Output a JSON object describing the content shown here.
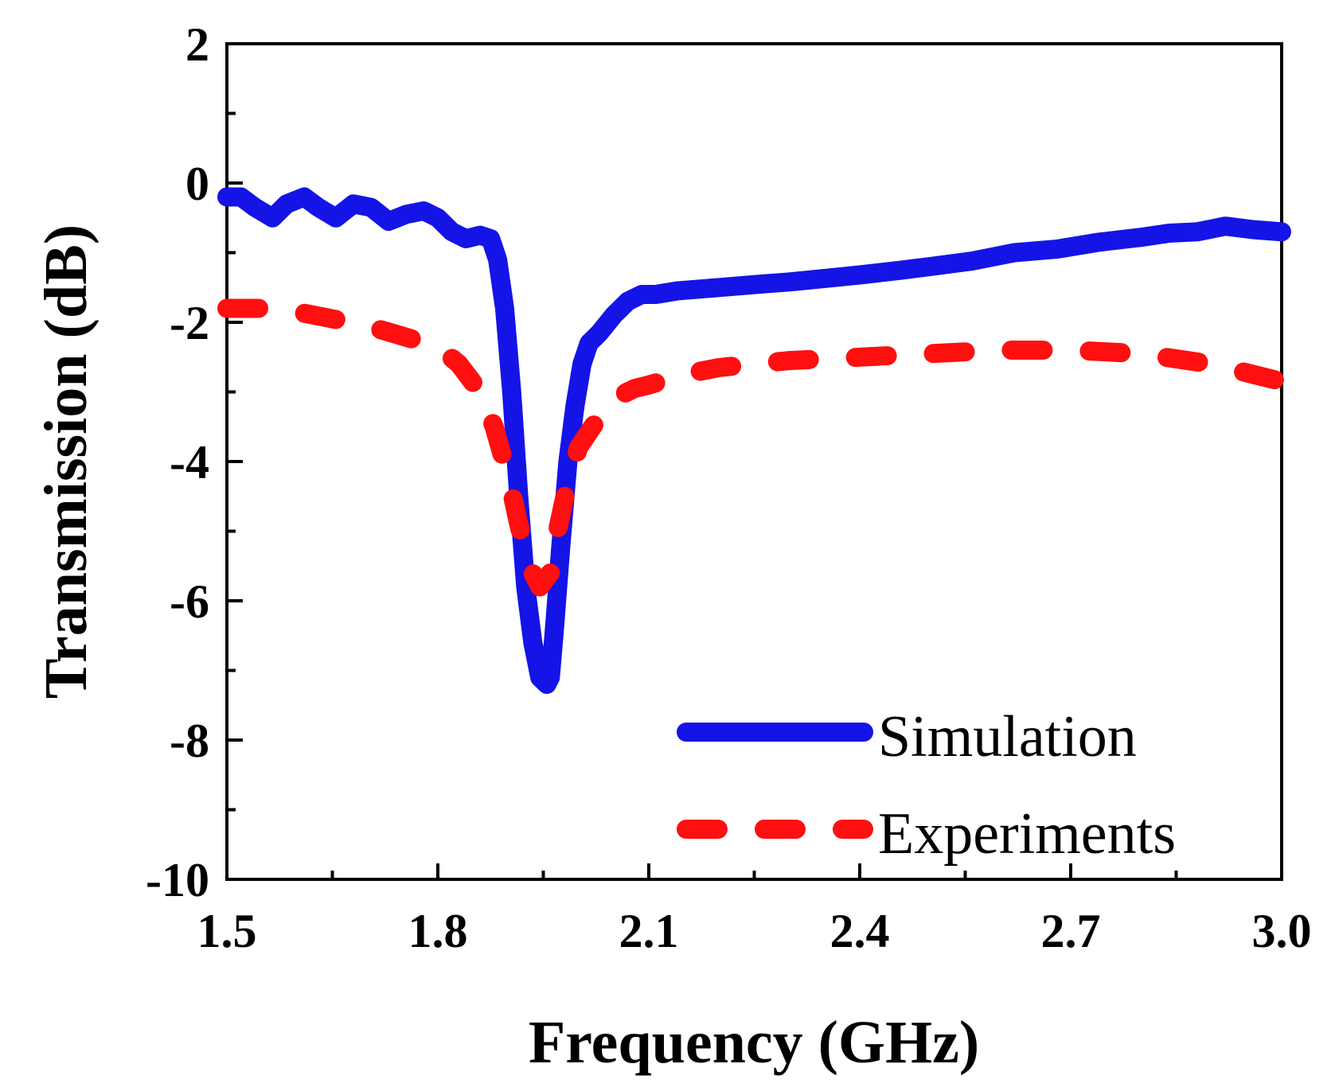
{
  "chart_data": {
    "type": "line",
    "title": "",
    "xlabel": "Frequency (GHz)",
    "ylabel": "Transmission (dB)",
    "xlim": [
      1.5,
      3.0
    ],
    "ylim": [
      -10,
      2
    ],
    "xticks": [
      1.5,
      1.8,
      2.1,
      2.4,
      2.7,
      3.0
    ],
    "xtick_labels": [
      "1.5",
      "1.8",
      "2.1",
      "2.4",
      "2.7",
      "3.0"
    ],
    "yticks": [
      2,
      0,
      -2,
      -4,
      -6,
      -8,
      -10
    ],
    "ytick_labels": [
      "2",
      "0",
      "-2",
      "-4",
      "-6",
      "-8",
      "-10"
    ],
    "grid": false,
    "legend_position": "bottom-right",
    "series": [
      {
        "name": "Simulation",
        "color": "#1414e6",
        "style": "solid",
        "x": [
          1.5,
          1.52,
          1.54,
          1.565,
          1.585,
          1.61,
          1.63,
          1.655,
          1.68,
          1.705,
          1.73,
          1.755,
          1.78,
          1.8,
          1.82,
          1.84,
          1.86,
          1.875,
          1.885,
          1.895,
          1.905,
          1.915,
          1.925,
          1.935,
          1.945,
          1.955,
          1.96,
          1.965,
          1.975,
          1.985,
          1.995,
          2.005,
          2.015,
          2.03,
          2.05,
          2.07,
          2.09,
          2.11,
          2.14,
          2.2,
          2.26,
          2.3,
          2.34,
          2.4,
          2.46,
          2.5,
          2.56,
          2.62,
          2.68,
          2.74,
          2.8,
          2.84,
          2.88,
          2.92,
          2.96,
          3.0
        ],
        "y": [
          -0.2,
          -0.2,
          -0.35,
          -0.5,
          -0.3,
          -0.2,
          -0.35,
          -0.5,
          -0.3,
          -0.35,
          -0.55,
          -0.45,
          -0.4,
          -0.5,
          -0.7,
          -0.8,
          -0.75,
          -0.8,
          -1.1,
          -1.8,
          -3.0,
          -4.5,
          -5.8,
          -6.6,
          -7.1,
          -7.2,
          -7.1,
          -6.5,
          -5.2,
          -4.0,
          -3.2,
          -2.6,
          -2.3,
          -2.15,
          -1.9,
          -1.7,
          -1.6,
          -1.6,
          -1.55,
          -1.5,
          -1.45,
          -1.42,
          -1.38,
          -1.32,
          -1.25,
          -1.2,
          -1.12,
          -1.0,
          -0.95,
          -0.85,
          -0.78,
          -0.72,
          -0.7,
          -0.62,
          -0.67,
          -0.7
        ]
      },
      {
        "name": "Experiments",
        "color": "#ff0f0f",
        "style": "dashed",
        "x": [
          1.5,
          1.55,
          1.6,
          1.65,
          1.7,
          1.75,
          1.8,
          1.83,
          1.86,
          1.88,
          1.9,
          1.915,
          1.93,
          1.945,
          1.96,
          1.97,
          1.985,
          2.0,
          2.02,
          2.05,
          2.08,
          2.1,
          2.15,
          2.2,
          2.3,
          2.4,
          2.5,
          2.6,
          2.7,
          2.8,
          2.9,
          3.0
        ],
        "y": [
          -1.8,
          -1.8,
          -1.85,
          -1.95,
          -2.05,
          -2.2,
          -2.35,
          -2.6,
          -3.0,
          -3.5,
          -4.2,
          -4.9,
          -5.5,
          -5.8,
          -5.6,
          -5.0,
          -4.3,
          -3.8,
          -3.5,
          -3.1,
          -2.95,
          -2.9,
          -2.75,
          -2.65,
          -2.55,
          -2.5,
          -2.45,
          -2.4,
          -2.4,
          -2.45,
          -2.6,
          -2.85
        ]
      }
    ]
  }
}
